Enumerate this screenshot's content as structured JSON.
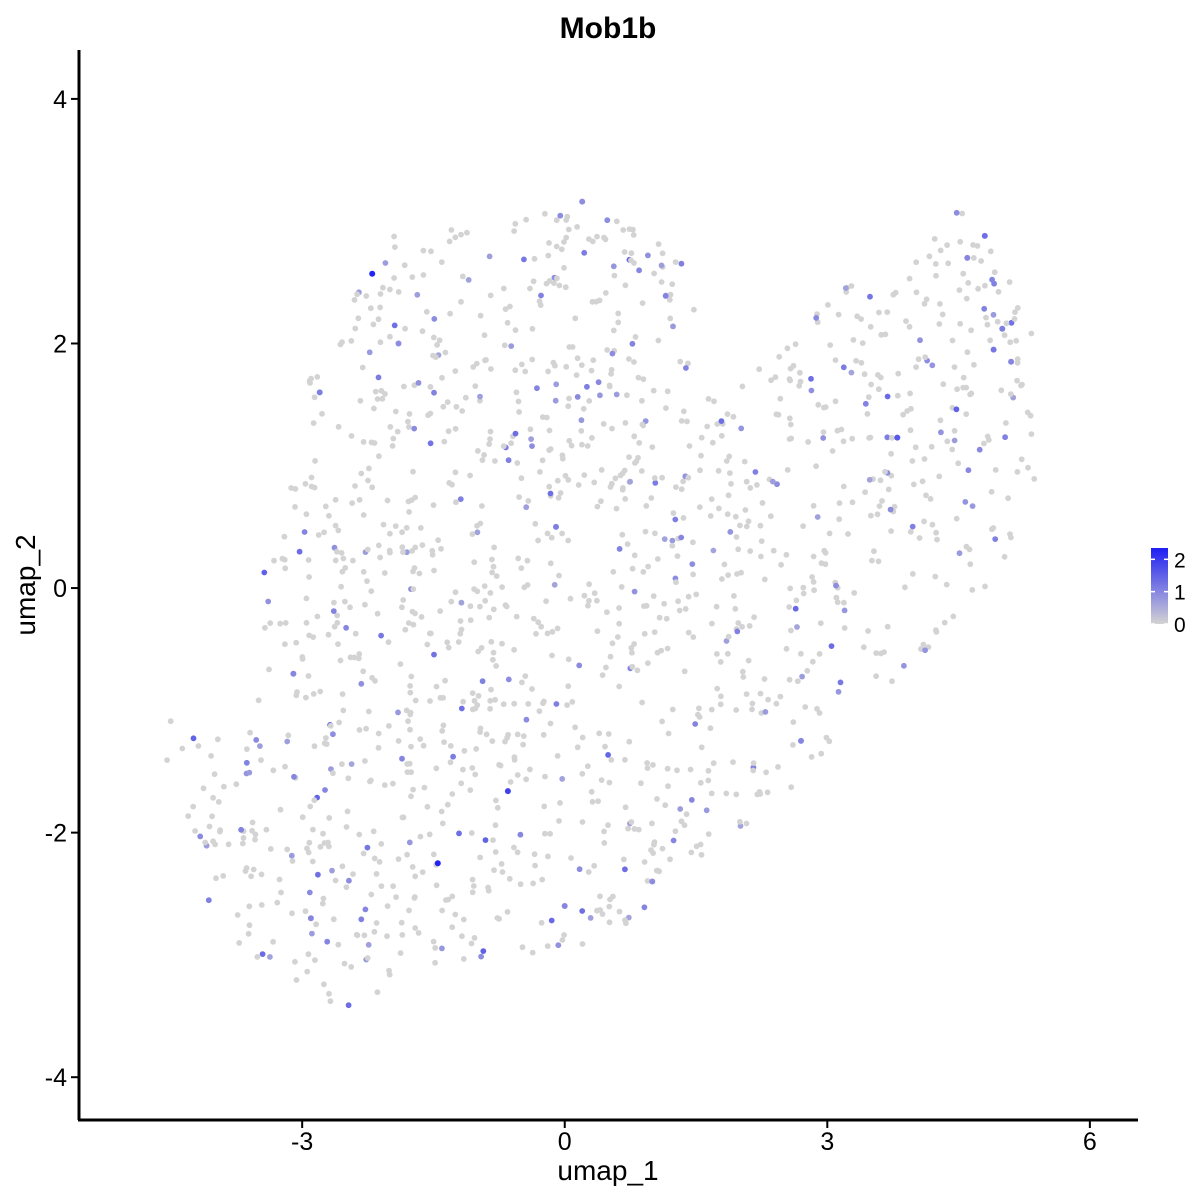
{
  "chart_data": {
    "type": "scatter",
    "title": "Mob1b",
    "xlabel": "umap_1",
    "ylabel": "umap_2",
    "xlim": [
      -5.55,
      6.55
    ],
    "ylim": [
      -4.35,
      4.4
    ],
    "x_ticks": [
      -3,
      0,
      3,
      6
    ],
    "y_ticks": [
      -4,
      -2,
      0,
      2,
      4
    ],
    "x_tick_labels": [
      "-3",
      "0",
      "3",
      "6"
    ],
    "y_tick_labels": [
      "-4",
      "-2",
      "0",
      "2",
      "4"
    ],
    "grid": false,
    "legend_position": "right",
    "color_scale": {
      "low_color": "#d3d3d3",
      "high_color": "#1f1ff4",
      "min": 0,
      "max": 2.35,
      "ticks": [
        0,
        1,
        2
      ],
      "tick_labels": [
        "0",
        "1",
        "2"
      ]
    },
    "points": [
      {
        "x": -2.2,
        "y": 2.57,
        "value": 2.3
      },
      {
        "x": -1.45,
        "y": -2.25,
        "value": 2.3
      },
      {
        "x": -0.65,
        "y": -1.66,
        "value": 1.9
      },
      {
        "x": 3.8,
        "y": 1.23,
        "value": 1.6
      },
      {
        "x": 4.8,
        "y": 2.88,
        "value": 1.3
      },
      {
        "x": 5.0,
        "y": 2.12,
        "value": 1.1
      },
      {
        "x": 4.9,
        "y": 1.95,
        "value": 1.2
      },
      {
        "x": 5.1,
        "y": 1.85,
        "value": 1.0
      },
      {
        "x": 4.6,
        "y": 2.7,
        "value": 1.0
      },
      {
        "x": -2.8,
        "y": 1.6,
        "value": 1.1
      },
      {
        "x": -3.1,
        "y": -0.7,
        "value": 1.0
      },
      {
        "x": -2.9,
        "y": -2.7,
        "value": 1.0
      },
      {
        "x": -0.1,
        "y": 0.5,
        "value": 1.1
      },
      {
        "x": 0.2,
        "y": 3.16,
        "value": 0.9
      },
      {
        "x": -1.9,
        "y": 2.0,
        "value": 0.9
      },
      {
        "x": 0.0,
        "y": -2.6,
        "value": 1.0
      },
      {
        "x": 1.0,
        "y": -2.4,
        "value": 0.9
      },
      {
        "x": 2.7,
        "y": -1.25,
        "value": 1.0
      }
    ],
    "background_points": {
      "value": 0,
      "note_count": 1500
    }
  }
}
